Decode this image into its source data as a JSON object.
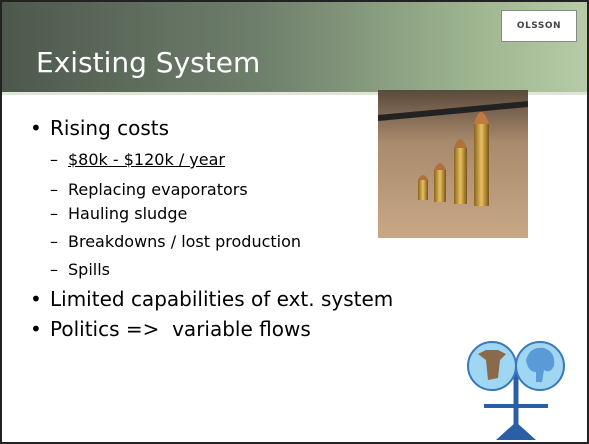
{
  "header": {
    "title": "Existing System",
    "logo": "OLSSON"
  },
  "bullets": [
    {
      "text": "Rising costs",
      "sub": [
        "$80k - $120k / year",
        "Replacing evaporators",
        "Hauling sludge",
        "Breakdowns / lost production",
        "Spills"
      ]
    },
    {
      "text": "Limited capabilities of ext. system"
    },
    {
      "text": "Politics =>  variable flows"
    }
  ]
}
